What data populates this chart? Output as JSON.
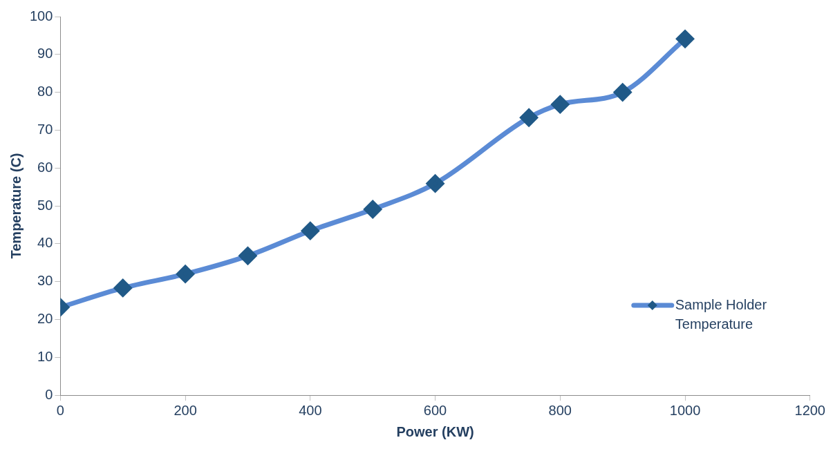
{
  "chart_data": {
    "type": "line",
    "xlabel": "Power (KW)",
    "ylabel": "Temperature (C)",
    "x": [
      0,
      100,
      200,
      300,
      400,
      500,
      600,
      750,
      800,
      900,
      1000
    ],
    "series": [
      {
        "name": "Sample Holder Temperature",
        "color": "#5b8bd5",
        "values": [
          23.2,
          28.3,
          32.0,
          36.8,
          43.4,
          49.1,
          55.9,
          73.3,
          76.8,
          80.0,
          94.1
        ]
      }
    ],
    "xlim": [
      0,
      1200
    ],
    "xticks": [
      0,
      200,
      400,
      600,
      800,
      1000,
      1200
    ],
    "ylim": [
      0,
      100
    ],
    "yticks": [
      0,
      10,
      20,
      30,
      40,
      50,
      60,
      70,
      80,
      90,
      100
    ],
    "grid": false,
    "legend": "right",
    "marker": "diamond",
    "line_style": "solid"
  }
}
